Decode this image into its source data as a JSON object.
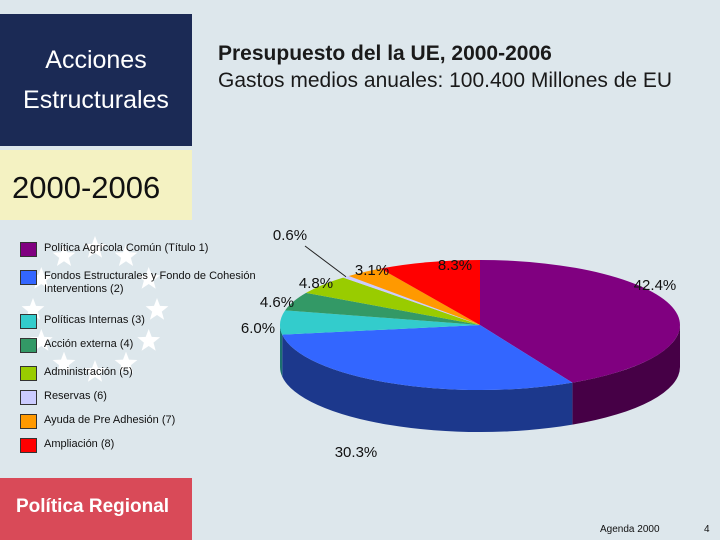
{
  "sidebar": {
    "title_line1": "Acciones",
    "title_line2": "Estructurales",
    "period": "2000-2006",
    "footer": "Política Regional"
  },
  "header": {
    "title": "Presupuesto del la UE, 2000-2006",
    "subtitle": "Gastos medios anuales: 100.400 Millones de EU"
  },
  "chart_data": {
    "type": "pie",
    "title": "Presupuesto del la UE, 2000-2006",
    "subtitle": "Gastos medios anuales: 100.400 Millones de EU",
    "categories": [
      "Política Agrícola Común (Título 1)",
      "Fondos Estructurales y Fondo de Cohesión Interventions (2)",
      "Políticas Internas (3)",
      "Acción externa (4)",
      "Administración (5)",
      "Reservas (6)",
      "Ayuda de Pre Adhesión (7)",
      "Ampliación (8)"
    ],
    "values": [
      42.4,
      30.3,
      6.0,
      4.6,
      4.8,
      0.6,
      3.1,
      8.3
    ],
    "labels": [
      "42.4%",
      "30.3%",
      "6.0%",
      "4.6%",
      "4.8%",
      "0.6%",
      "3.1%",
      "8.3%"
    ],
    "colors": [
      "#800080",
      "#3366ff",
      "#33cccc",
      "#339966",
      "#99cc00",
      "#ccccff",
      "#ff9900",
      "#ff0000"
    ],
    "legend_position": "left",
    "style": "3d-pie"
  },
  "footer": {
    "agenda": "Agenda 2000",
    "page": "4"
  }
}
